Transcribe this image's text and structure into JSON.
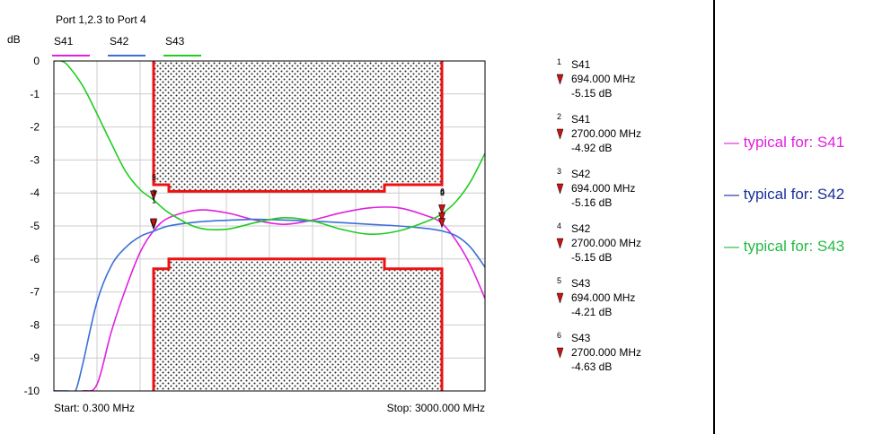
{
  "chart_data": {
    "type": "line",
    "title": "Port 1,2.3 to Port 4",
    "ylabel": "dB",
    "ylim": [
      -10,
      0
    ],
    "xlim": [
      0.3,
      3000
    ],
    "x_unit": "MHz",
    "grid": true,
    "y_ticks": [
      "0",
      "-1",
      "-2",
      "-3",
      "-4",
      "-5",
      "-6",
      "-7",
      "-8",
      "-9",
      "-10"
    ],
    "start_label": "Start: 0.300 MHz",
    "stop_label": "Stop: 3000.000 MHz",
    "legend_position": "top",
    "series": [
      {
        "name": "S41",
        "color": "#e020e0",
        "x": [
          0.3,
          200,
          300,
          400,
          500,
          600,
          694,
          800,
          1000,
          1200,
          1400,
          1600,
          1800,
          2000,
          2200,
          2400,
          2600,
          2700,
          2800,
          2900,
          3000
        ],
        "y": [
          -10,
          -10,
          -9.8,
          -8.2,
          -6.9,
          -5.8,
          -5.15,
          -4.75,
          -4.52,
          -4.6,
          -4.82,
          -4.95,
          -4.82,
          -4.6,
          -4.45,
          -4.45,
          -4.7,
          -4.92,
          -5.45,
          -6.2,
          -7.2
        ]
      },
      {
        "name": "S42",
        "color": "#3b6fd8",
        "x": [
          0.3,
          100,
          150,
          200,
          300,
          400,
          500,
          600,
          694,
          800,
          1000,
          1200,
          1400,
          1600,
          1800,
          2000,
          2200,
          2400,
          2600,
          2700,
          2800,
          2900,
          3000
        ],
        "y": [
          -10,
          -10,
          -10,
          -9.2,
          -7.3,
          -6.2,
          -5.65,
          -5.32,
          -5.16,
          -5.0,
          -4.88,
          -4.83,
          -4.8,
          -4.82,
          -4.85,
          -4.9,
          -4.95,
          -5.0,
          -5.08,
          -5.15,
          -5.3,
          -5.65,
          -6.25
        ]
      },
      {
        "name": "S43",
        "color": "#22cc22",
        "x": [
          0.3,
          50,
          100,
          200,
          300,
          400,
          500,
          600,
          694,
          800,
          1000,
          1200,
          1400,
          1600,
          1800,
          2000,
          2200,
          2400,
          2600,
          2700,
          2800,
          2900,
          3000
        ],
        "y": [
          0,
          0,
          -0.15,
          -0.75,
          -1.6,
          -2.5,
          -3.35,
          -3.9,
          -4.21,
          -4.6,
          -5.05,
          -5.1,
          -4.9,
          -4.75,
          -4.85,
          -5.1,
          -5.25,
          -5.15,
          -4.85,
          -4.63,
          -4.25,
          -3.65,
          -2.8
        ]
      }
    ],
    "mask_upper": {
      "x": [
        694,
        694,
        800,
        800,
        2300,
        2300,
        2700,
        2700
      ],
      "y": [
        0,
        -3.75,
        -3.75,
        -3.95,
        -3.95,
        -3.75,
        -3.75,
        0
      ]
    },
    "mask_lower": {
      "x": [
        694,
        694,
        800,
        800,
        2300,
        2300,
        2700,
        2700
      ],
      "y": [
        -10,
        -6.3,
        -6.3,
        -6.0,
        -6.0,
        -6.3,
        -6.3,
        -10
      ]
    },
    "marker_color": "#cc1111",
    "markers": [
      {
        "num": "1",
        "trace": "S41",
        "freq": "694.000 MHz",
        "value": "-5.15 dB",
        "x": 694,
        "y": -5.15
      },
      {
        "num": "2",
        "trace": "S41",
        "freq": "2700.000 MHz",
        "value": "-4.92 dB",
        "x": 2700,
        "y": -4.92
      },
      {
        "num": "3",
        "trace": "S42",
        "freq": "694.000 MHz",
        "value": "-5.16 dB",
        "x": 694,
        "y": -5.16
      },
      {
        "num": "4",
        "trace": "S42",
        "freq": "2700.000 MHz",
        "value": "-5.15 dB",
        "x": 2700,
        "y": -5.15
      },
      {
        "num": "5",
        "trace": "S43",
        "freq": "694.000 MHz",
        "value": "-4.21 dB",
        "x": 694,
        "y": -4.21
      },
      {
        "num": "6",
        "trace": "S43",
        "freq": "2700.000 MHz",
        "value": "-4.63 dB",
        "x": 2700,
        "y": -4.63
      }
    ]
  },
  "typical": [
    {
      "text": "— typical for: S41",
      "color": "#e020e0"
    },
    {
      "text": "— typical for: S42",
      "color": "#1a2f9a"
    },
    {
      "text": "— typical for: S43",
      "color": "#22bb44"
    }
  ]
}
